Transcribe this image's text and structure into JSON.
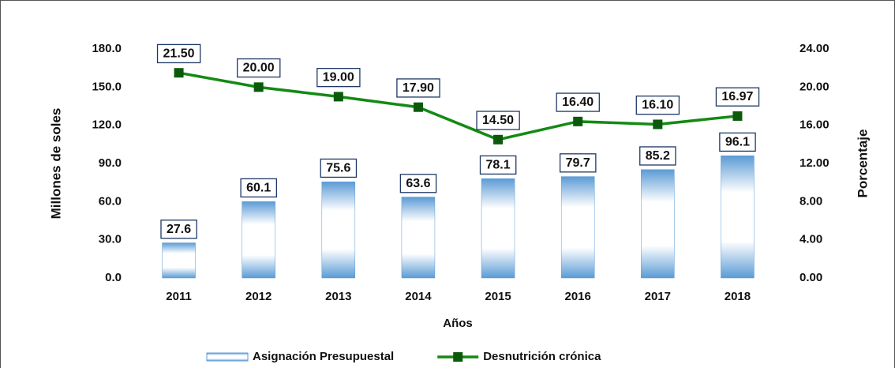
{
  "chart_data": {
    "type": "bar-line",
    "x_label": "Años",
    "y_label": "Millones de soles",
    "y2_label": "Porcentaje",
    "categories": [
      "2011",
      "2012",
      "2013",
      "2014",
      "2015",
      "2016",
      "2017",
      "2018"
    ],
    "series": [
      {
        "name": "Asignación Presupuestal",
        "type": "bar",
        "axis": "y",
        "color": "#5b9bd5",
        "values": [
          27.6,
          60.1,
          75.6,
          63.6,
          78.1,
          79.7,
          85.2,
          96.1
        ]
      },
      {
        "name": "Desnutrición crónica",
        "type": "line",
        "axis": "y2",
        "color": "#138a13",
        "values": [
          21.5,
          20.0,
          19.0,
          17.9,
          14.5,
          16.4,
          16.1,
          16.97
        ],
        "value_labels": [
          "21.50",
          "20.00",
          "19.00",
          "17.90",
          "14.50",
          "16.40",
          "16.10",
          "16.97"
        ]
      }
    ],
    "ylim": [
      0,
      180
    ],
    "yticks": [
      {
        "value": 0,
        "label": "0.0"
      },
      {
        "value": 30,
        "label": "30.0"
      },
      {
        "value": 60,
        "label": "60.0"
      },
      {
        "value": 90,
        "label": "90.0"
      },
      {
        "value": 120,
        "label": "120.0"
      },
      {
        "value": 150,
        "label": "150.0"
      },
      {
        "value": 180,
        "label": "180.0"
      }
    ],
    "y2lim": [
      0,
      24
    ],
    "y2ticks": [
      {
        "value": 0,
        "label": "0.00"
      },
      {
        "value": 4,
        "label": "4.00"
      },
      {
        "value": 8,
        "label": "8.00"
      },
      {
        "value": 12,
        "label": "12.00"
      },
      {
        "value": 16,
        "label": "16.00"
      },
      {
        "value": 20,
        "label": "20.00"
      },
      {
        "value": 24,
        "label": "24.00"
      }
    ],
    "legend": "bottom"
  }
}
